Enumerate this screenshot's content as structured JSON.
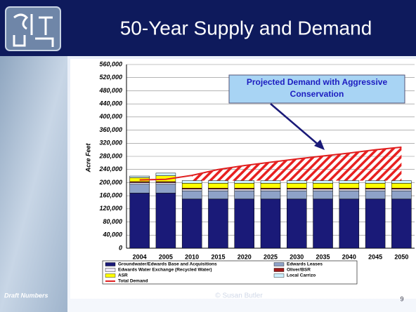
{
  "slide": {
    "title": "50-Year Supply and Demand",
    "footer_left": "Draft Numbers",
    "footer_center": "© Susan Butler",
    "page_number": "9"
  },
  "chart_data": {
    "type": "bar",
    "stacked": true,
    "y_label": "Acre Feet",
    "annotation": "Projected Demand with Aggressive Conservation",
    "categories": [
      "2004",
      "2005",
      "2010",
      "2015",
      "2020",
      "2025",
      "2030",
      "2035",
      "2040",
      "2045",
      "2050"
    ],
    "series": [
      {
        "name": "Groundwater/Edwards Base and Acquisitions",
        "color": "#1a1a78",
        "values": [
          168000,
          168000,
          150000,
          150000,
          150000,
          150000,
          150000,
          150000,
          150000,
          150000,
          150000
        ]
      },
      {
        "name": "Edwards Leases",
        "color": "#8ea2c8",
        "values": [
          27000,
          27000,
          25000,
          25000,
          25000,
          25000,
          25000,
          25000,
          25000,
          25000,
          25000
        ]
      },
      {
        "name": "Edwards Water Exchange (Recycled Water)",
        "color": "#ece6f4",
        "values": [
          5000,
          5000,
          5000,
          5000,
          5000,
          5000,
          5000,
          5000,
          5000,
          5000,
          5000
        ]
      },
      {
        "name": "Oliver/BSR",
        "color": "#a01818",
        "values": [
          3000,
          3000,
          3000,
          3000,
          3000,
          3000,
          3000,
          3000,
          3000,
          3000,
          3000
        ]
      },
      {
        "name": "ASR",
        "color": "#ffff00",
        "values": [
          12000,
          18000,
          15000,
          15000,
          15000,
          15000,
          15000,
          15000,
          15000,
          15000,
          15000
        ]
      },
      {
        "name": "Local Carrizo",
        "color": "#ccf0ff",
        "values": [
          5000,
          8000,
          8000,
          8000,
          8000,
          8000,
          8000,
          8000,
          8000,
          8000,
          8000
        ]
      },
      {
        "name": "Total Demand",
        "type": "line",
        "color": "#e02020",
        "values": [
          208000,
          210000,
          222000,
          240000,
          252000,
          262000,
          272000,
          281000,
          290000,
          300000,
          308000
        ]
      }
    ],
    "ylim": [
      0,
      560000
    ],
    "yticks": [
      0,
      {
        "value": 40000,
        "label": "40,000"
      },
      {
        "value": 80000,
        "label": "80,000"
      },
      {
        "value": 120000,
        "label": "120,000"
      },
      {
        "value": 160000,
        "label": "160,000"
      },
      {
        "value": 200000,
        "label": "200,000"
      },
      {
        "value": 240000,
        "label": "240,000"
      },
      {
        "value": 280000,
        "label": "280,000"
      },
      {
        "value": 320000,
        "label": "320,000"
      },
      {
        "value": 360000,
        "label": "360,000"
      },
      {
        "value": 400000,
        "label": "400,000"
      },
      {
        "value": 440000,
        "label": "440,000"
      },
      {
        "value": 480000,
        "label": "480,000"
      },
      {
        "value": 520000,
        "label": "520,000"
      },
      {
        "value": 560000,
        "label": "560,000"
      }
    ]
  }
}
